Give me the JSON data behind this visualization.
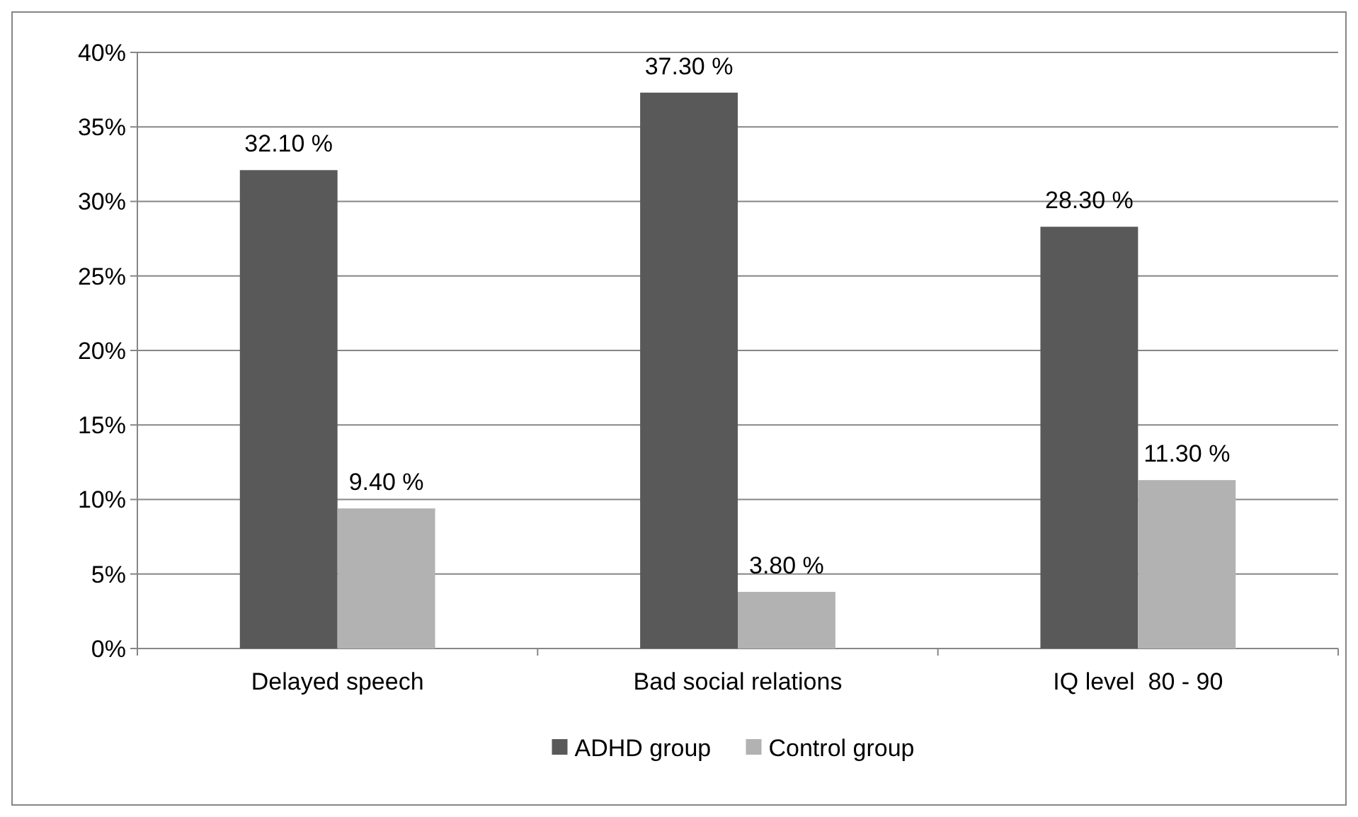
{
  "chart_data": {
    "type": "bar",
    "categories": [
      "Delayed speech",
      "Bad social relations",
      "IQ level  80 - 90"
    ],
    "series": [
      {
        "name": "ADHD group",
        "color": "#595959",
        "values": [
          32.1,
          37.3,
          28.3
        ],
        "value_labels": [
          "32.10 %",
          "37.30 %",
          "28.30 %"
        ]
      },
      {
        "name": "Control group",
        "color": "#b2b2b2",
        "values": [
          9.4,
          3.8,
          11.3
        ],
        "value_labels": [
          "9.40 %",
          "3.80 %",
          "11.30 %"
        ]
      }
    ],
    "ylim": [
      0,
      40
    ],
    "yticks": [
      {
        "value": 0,
        "label": "0%"
      },
      {
        "value": 5,
        "label": "5%"
      },
      {
        "value": 10,
        "label": "10%"
      },
      {
        "value": 15,
        "label": "15%"
      },
      {
        "value": 20,
        "label": "20%"
      },
      {
        "value": 25,
        "label": "25%"
      },
      {
        "value": 30,
        "label": "30%"
      },
      {
        "value": 35,
        "label": "35%"
      },
      {
        "value": 40,
        "label": "40%"
      }
    ],
    "grid": "y",
    "legend": "bottom"
  }
}
